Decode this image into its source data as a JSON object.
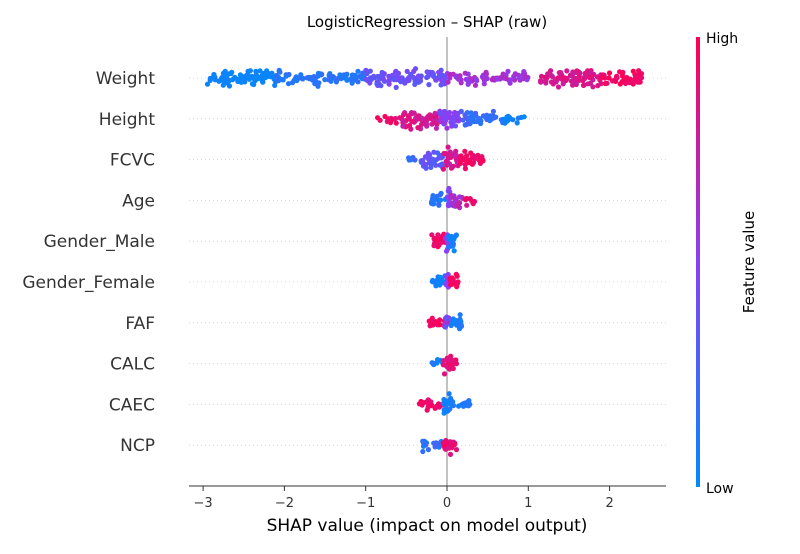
{
  "chart_data": {
    "type": "scatter",
    "title": "LogisticRegression – SHAP (raw)",
    "xlabel": "SHAP value (impact on model output)",
    "ylabel": "",
    "xlim": [
      -3.2,
      2.7
    ],
    "x_ticks": [
      -3,
      -2,
      -1,
      0,
      1,
      2
    ],
    "x_tick_labels": [
      "−3",
      "−2",
      "−1",
      "0",
      "1",
      "2"
    ],
    "grid": false,
    "colorbar": {
      "label": "Feature value",
      "high_label": "High",
      "low_label": "Low",
      "low_color": "#008afb",
      "mid_color": "#8a3ff5",
      "high_color": "#ff0052"
    },
    "features": [
      {
        "name": "Weight",
        "segments": [
          [
            -2.95,
            -2.1,
            0.02,
            0.06,
            0.7
          ],
          [
            -2.1,
            -1.0,
            0.08,
            0.2,
            0.55
          ],
          [
            -1.0,
            0.0,
            0.32,
            0.48,
            0.8
          ],
          [
            0.0,
            1.0,
            0.52,
            0.68,
            0.55
          ],
          [
            1.15,
            1.9,
            0.76,
            0.9,
            0.8
          ],
          [
            1.9,
            2.4,
            0.9,
            1.0,
            0.7
          ]
        ]
      },
      {
        "name": "Height",
        "segments": [
          [
            -0.9,
            -0.55,
            0.85,
            0.98,
            0.3
          ],
          [
            -0.55,
            -0.1,
            0.7,
            0.9,
            0.95
          ],
          [
            -0.1,
            0.15,
            0.35,
            0.6,
            1.0
          ],
          [
            0.15,
            0.6,
            0.12,
            0.3,
            0.65
          ],
          [
            0.6,
            0.95,
            0.0,
            0.12,
            0.3
          ]
        ]
      },
      {
        "name": "FCVC",
        "segments": [
          [
            -0.48,
            -0.3,
            0.1,
            0.25,
            0.25
          ],
          [
            -0.3,
            -0.05,
            0.25,
            0.45,
            0.8
          ],
          [
            -0.05,
            0.15,
            0.7,
            0.9,
            1.0
          ],
          [
            0.15,
            0.45,
            0.88,
            1.0,
            0.7
          ]
        ]
      },
      {
        "name": "Age",
        "segments": [
          [
            -0.2,
            0.0,
            0.05,
            0.22,
            0.6
          ],
          [
            0.0,
            0.05,
            0.3,
            0.5,
            1.0
          ],
          [
            0.05,
            0.2,
            0.55,
            0.75,
            0.75
          ],
          [
            0.2,
            0.35,
            0.8,
            0.95,
            0.4
          ]
        ]
      },
      {
        "name": "Gender_Male",
        "segments": [
          [
            -0.2,
            -0.02,
            0.88,
            1.0,
            0.65
          ],
          [
            -0.02,
            0.02,
            0.5,
            0.5,
            1.0
          ],
          [
            0.02,
            0.15,
            0.0,
            0.15,
            0.7
          ]
        ]
      },
      {
        "name": "Gender_Female",
        "segments": [
          [
            -0.18,
            -0.02,
            0.0,
            0.12,
            0.65
          ],
          [
            -0.02,
            0.02,
            0.5,
            0.5,
            1.0
          ],
          [
            0.02,
            0.15,
            0.88,
            1.0,
            0.7
          ]
        ]
      },
      {
        "name": "FAF",
        "segments": [
          [
            -0.22,
            -0.03,
            0.85,
            1.0,
            0.55
          ],
          [
            -0.03,
            0.03,
            0.35,
            0.65,
            1.0
          ],
          [
            0.03,
            0.18,
            0.0,
            0.15,
            0.7
          ]
        ]
      },
      {
        "name": "CALC",
        "segments": [
          [
            -0.2,
            -0.05,
            0.0,
            0.15,
            0.35
          ],
          [
            -0.05,
            0.05,
            0.75,
            0.95,
            1.0
          ],
          [
            0.05,
            0.12,
            0.85,
            1.0,
            0.6
          ]
        ]
      },
      {
        "name": "CAEC",
        "segments": [
          [
            -0.38,
            -0.25,
            0.9,
            1.0,
            0.3
          ],
          [
            -0.25,
            -0.05,
            0.85,
            1.0,
            0.6
          ],
          [
            -0.05,
            0.05,
            0.0,
            0.15,
            1.0
          ],
          [
            0.05,
            0.3,
            0.0,
            0.15,
            0.45
          ]
        ]
      },
      {
        "name": "NCP",
        "segments": [
          [
            -0.3,
            -0.05,
            0.05,
            0.25,
            0.45
          ],
          [
            -0.05,
            0.05,
            0.8,
            1.0,
            1.0
          ],
          [
            0.05,
            0.12,
            0.85,
            1.0,
            0.5
          ]
        ]
      }
    ]
  }
}
